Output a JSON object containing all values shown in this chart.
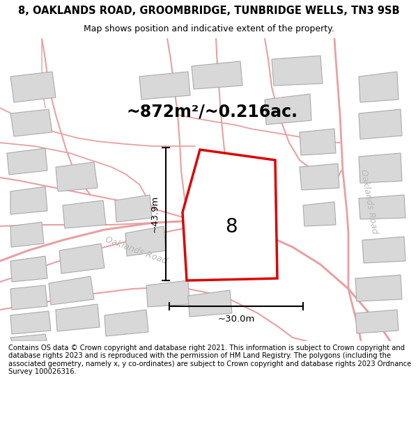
{
  "title_line1": "8, OAKLANDS ROAD, GROOMBRIDGE, TUNBRIDGE WELLS, TN3 9SB",
  "title_line2": "Map shows position and indicative extent of the property.",
  "area_text": "~872m²/~0.216ac.",
  "dimension_v": "~43.9m",
  "dimension_h": "~30.0m",
  "number_label": "8",
  "footer_text": "Contains OS data © Crown copyright and database right 2021. This information is subject to Crown copyright and database rights 2023 and is reproduced with the permission of HM Land Registry. The polygons (including the associated geometry, namely x, y co-ordinates) are subject to Crown copyright and database rights 2023 Ordnance Survey 100026316.",
  "bg_color": "#ffffff",
  "map_bg": "#faf7f7",
  "road_color": "#e8a0a0",
  "road_outline_color": "#d88888",
  "building_fill": "#d8d8d8",
  "building_edge": "#aaaaaa",
  "plot_color": "#dd0000",
  "plot_fill": "#ffffff",
  "road_label_color": "#b8b8b8",
  "dim_color": "#000000",
  "title_fontsize": 10.5,
  "subtitle_fontsize": 9,
  "area_fontsize": 17,
  "number_fontsize": 20,
  "dim_fontsize": 9.5,
  "footer_fontsize": 7.2,
  "road_label_fontsize": 9
}
